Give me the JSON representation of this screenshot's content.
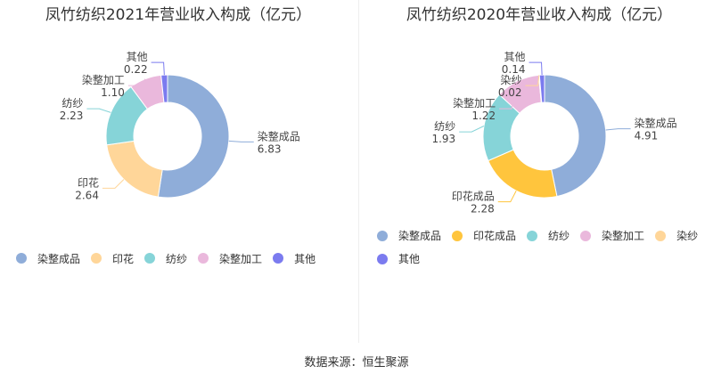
{
  "colors": {
    "染整成品": "#8fadd9",
    "印花": "#ffd699",
    "印花成品": "#ffc53d",
    "纺纱": "#86d4d8",
    "染整加工": "#eab8dc",
    "染纱": "#ffd699",
    "其他": "#7b7bef"
  },
  "chart_data": [
    {
      "type": "pie",
      "title": "凤竹纺织2021年营业收入构成（亿元）",
      "slices": [
        {
          "name": "染整成品",
          "value": 6.83
        },
        {
          "name": "印花",
          "value": 2.64
        },
        {
          "name": "纺纱",
          "value": 2.23
        },
        {
          "name": "染整加工",
          "value": 1.1
        },
        {
          "name": "其他",
          "value": 0.22
        }
      ]
    },
    {
      "type": "pie",
      "title": "凤竹纺织2020年营业收入构成（亿元）",
      "slices": [
        {
          "name": "染整成品",
          "value": 4.91
        },
        {
          "name": "印花成品",
          "value": 2.28
        },
        {
          "name": "纺纱",
          "value": 1.93
        },
        {
          "name": "染整加工",
          "value": 1.22
        },
        {
          "name": "染纱",
          "value": 0.02
        },
        {
          "name": "其他",
          "value": 0.14
        }
      ]
    }
  ],
  "source": "数据来源：恒生聚源"
}
